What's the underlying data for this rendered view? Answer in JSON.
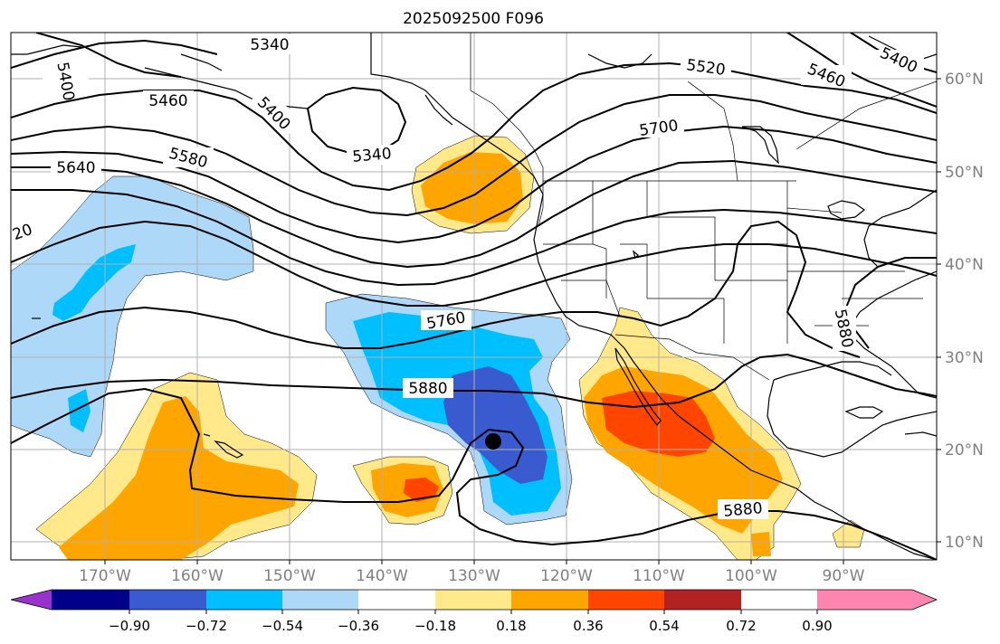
{
  "title": "2025092500 F096",
  "lat_ticks": [
    {
      "label": "60°N",
      "lat": 60
    },
    {
      "label": "50°N",
      "lat": 50
    },
    {
      "label": "40°N",
      "lat": 40
    },
    {
      "label": "30°N",
      "lat": 30
    },
    {
      "label": "20°N",
      "lat": 20
    },
    {
      "label": "10°N",
      "lat": 10
    }
  ],
  "lon_ticks": [
    {
      "label": "170°W",
      "lon": -170
    },
    {
      "label": "160°W",
      "lon": -160
    },
    {
      "label": "150°W",
      "lon": -150
    },
    {
      "label": "140°W",
      "lon": -140
    },
    {
      "label": "130°W",
      "lon": -130
    },
    {
      "label": "120°W",
      "lon": -120
    },
    {
      "label": "110°W",
      "lon": -110
    },
    {
      "label": "100°W",
      "lon": -100
    },
    {
      "label": "90°W",
      "lon": -90
    }
  ],
  "contour_labels": [
    "5340",
    "5400",
    "5460",
    "5520",
    "5580",
    "5640",
    "5700",
    "5760",
    "5880",
    "5880",
    "5880",
    "5340",
    "5400",
    "5460",
    "5400",
    "20"
  ],
  "colorbar": {
    "colors": [
      "#9932cc",
      "#00008b",
      "#3a5bd0",
      "#00bfff",
      "#add8f8",
      "#ffffff",
      "#ffe98a",
      "#ffa500",
      "#ff4500",
      "#b22222",
      "#ff85b0"
    ],
    "tick_labels": [
      "−0.90",
      "−0.72",
      "−0.54",
      "−0.36",
      "−0.18",
      "0.18",
      "0.36",
      "0.54",
      "0.72",
      "0.90"
    ]
  },
  "markers": [
    {
      "name": "storm-center",
      "lat": 20.7,
      "lon": -128.3
    }
  ]
}
